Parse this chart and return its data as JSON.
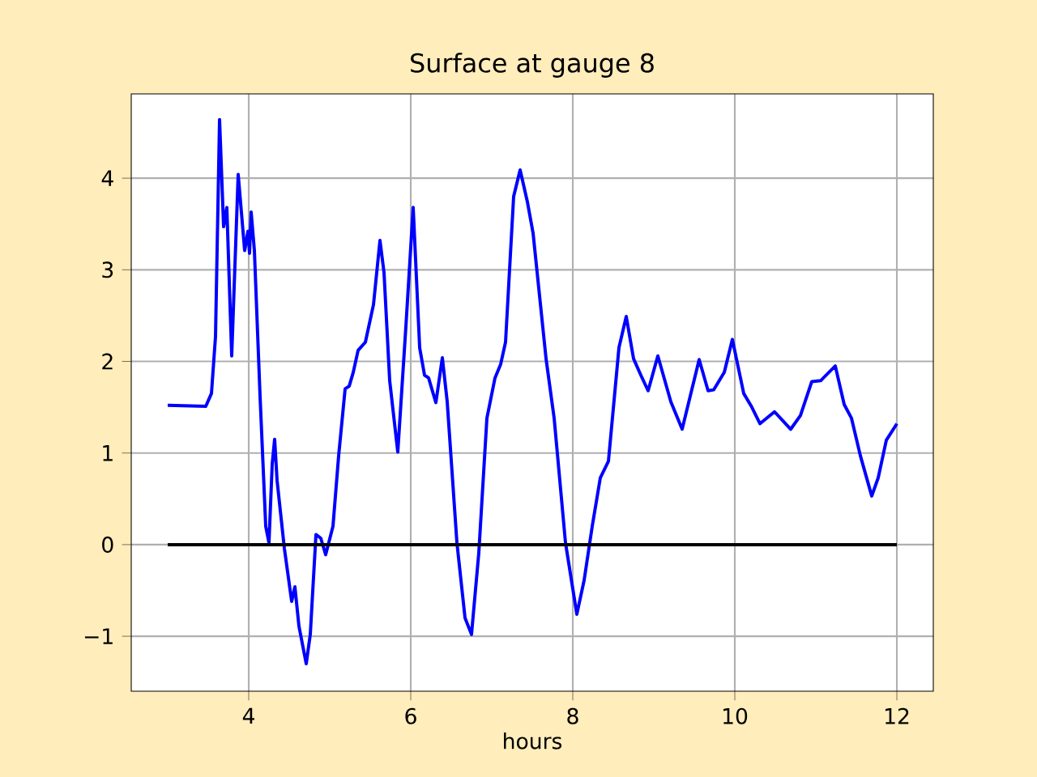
{
  "chart_data": {
    "type": "line",
    "title": "Surface at gauge 8",
    "xlabel": "hours",
    "xlim": [
      2.55,
      12.45
    ],
    "ylim": [
      -1.6,
      4.92
    ],
    "xticks": [
      4,
      6,
      8,
      10,
      12
    ],
    "yticks": [
      {
        "value": -1,
        "label": "−1"
      },
      0,
      1,
      2,
      3,
      4
    ],
    "grid": true,
    "series": [
      {
        "color": "#0000ff",
        "x": [
          3.0,
          3.47,
          3.54,
          3.59,
          3.64,
          3.69,
          3.73,
          3.79,
          3.87,
          3.95,
          3.99,
          4.01,
          4.03,
          4.07,
          4.14,
          4.21,
          4.25,
          4.29,
          4.32,
          4.35,
          4.44,
          4.53,
          4.57,
          4.62,
          4.71,
          4.76,
          4.83,
          4.89,
          4.95,
          5.04,
          5.11,
          5.19,
          5.24,
          5.29,
          5.35,
          5.44,
          5.54,
          5.62,
          5.67,
          5.74,
          5.84,
          5.94,
          6.03,
          6.11,
          6.17,
          6.22,
          6.31,
          6.39,
          6.45,
          6.57,
          6.67,
          6.75,
          6.84,
          6.94,
          7.04,
          7.11,
          7.17,
          7.27,
          7.35,
          7.44,
          7.51,
          7.67,
          7.77,
          7.91,
          8.05,
          8.14,
          8.24,
          8.34,
          8.44,
          8.57,
          8.66,
          8.75,
          8.84,
          8.93,
          9.05,
          9.21,
          9.35,
          9.56,
          9.67,
          9.74,
          9.87,
          9.97,
          10.11,
          10.21,
          10.31,
          10.49,
          10.69,
          10.81,
          10.95,
          11.06,
          11.24,
          11.35,
          11.44,
          11.55,
          11.69,
          11.77,
          11.87,
          12.0
        ],
        "values": [
          1.52,
          1.51,
          1.65,
          2.27,
          4.64,
          3.47,
          3.68,
          2.06,
          4.04,
          3.21,
          3.42,
          3.18,
          3.63,
          3.21,
          1.62,
          0.2,
          0.02,
          0.88,
          1.15,
          0.7,
          -0.04,
          -0.62,
          -0.46,
          -0.89,
          -1.3,
          -0.98,
          0.11,
          0.07,
          -0.11,
          0.2,
          0.97,
          1.7,
          1.73,
          1.88,
          2.12,
          2.21,
          2.62,
          3.32,
          2.97,
          1.79,
          1.01,
          2.38,
          3.68,
          2.15,
          1.85,
          1.82,
          1.55,
          2.04,
          1.56,
          0.02,
          -0.8,
          -0.98,
          -0.09,
          1.38,
          1.82,
          1.97,
          2.21,
          3.8,
          4.09,
          3.74,
          3.4,
          2.03,
          1.38,
          0.02,
          -0.76,
          -0.39,
          0.2,
          0.73,
          0.91,
          2.15,
          2.49,
          2.03,
          1.85,
          1.68,
          2.06,
          1.56,
          1.26,
          2.02,
          1.68,
          1.69,
          1.88,
          2.24,
          1.65,
          1.5,
          1.32,
          1.45,
          1.26,
          1.41,
          1.78,
          1.79,
          1.95,
          1.53,
          1.38,
          0.97,
          0.53,
          0.73,
          1.14,
          1.32
        ]
      },
      {
        "color": "#000000",
        "x": [
          3,
          12
        ],
        "values": [
          0,
          0
        ]
      }
    ]
  }
}
